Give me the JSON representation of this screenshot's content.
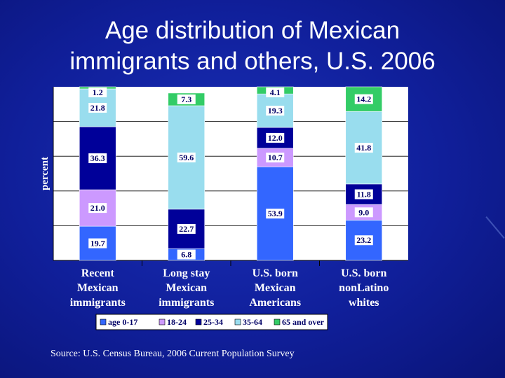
{
  "title_line1": "Age distribution of Mexican",
  "title_line2": "immigrants and others, U.S. 2006",
  "source": "Source: U.S. Census Bureau, 2006 Current Population Survey",
  "chart_data": {
    "type": "bar",
    "stacked": true,
    "ylabel": "percent",
    "ylim": [
      0,
      100
    ],
    "categories": [
      [
        "Recent",
        "Mexican",
        "immigrants"
      ],
      [
        "Long stay",
        "Mexican",
        "immigrants"
      ],
      [
        "U.S. born",
        "Mexican",
        "Americans"
      ],
      [
        "U.S. born",
        "nonLatino",
        "whites"
      ]
    ],
    "series": [
      {
        "name": "age 0-17",
        "color": "#3366ff",
        "values": [
          19.7,
          6.8,
          53.9,
          23.2
        ]
      },
      {
        "name": "18-24",
        "color": "#cc99ff",
        "values": [
          21.0,
          0,
          10.7,
          9.0
        ]
      },
      {
        "name": "25-34",
        "color": "#000099",
        "values": [
          36.3,
          22.7,
          12.0,
          11.8
        ]
      },
      {
        "name": "35-64",
        "color": "#99ddee",
        "values": [
          21.8,
          59.6,
          19.3,
          41.8
        ]
      },
      {
        "name": "65 and over",
        "color": "#33cc66",
        "values": [
          1.2,
          7.3,
          4.1,
          14.2
        ]
      }
    ],
    "labels": [
      [
        "19.7",
        "21.0",
        "36.3",
        "21.8",
        "1.2"
      ],
      [
        "6.8",
        "",
        "22.7",
        "59.6",
        "7.3"
      ],
      [
        "53.9",
        "10.7",
        "12.0",
        "19.3",
        "4.1"
      ],
      [
        "23.2",
        "9.0",
        "11.8",
        "41.8",
        "14.2"
      ]
    ],
    "legend": [
      "age 0-17",
      "18-24",
      "25-34",
      "35-64",
      "65 and over"
    ],
    "legend_position": "bottom"
  }
}
